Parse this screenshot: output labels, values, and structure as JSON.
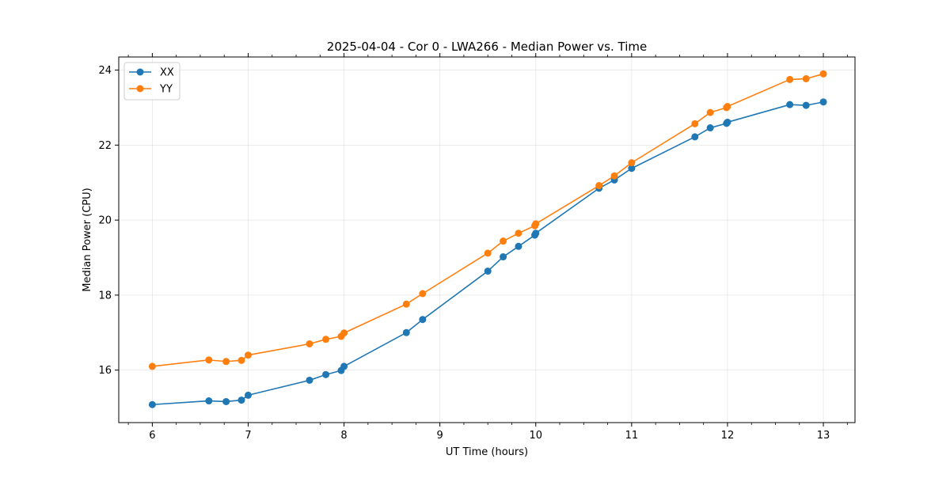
{
  "chart_data": {
    "type": "line",
    "title": "2025-04-04 - Cor 0 - LWA266 - Median Power vs. Time",
    "xlabel": "UT Time (hours)",
    "ylabel": "Median Power (CPU)",
    "xlim": [
      5.65,
      13.33
    ],
    "ylim": [
      14.6,
      24.35
    ],
    "xticks": [
      6,
      7,
      8,
      9,
      10,
      11,
      12,
      13
    ],
    "xtick_labels": [
      "6",
      "7",
      "8",
      "9",
      "10",
      "11",
      "12",
      "13"
    ],
    "xminor_step": 0.25,
    "yticks": [
      16,
      18,
      20,
      22,
      24
    ],
    "ytick_labels": [
      "16",
      "18",
      "20",
      "22",
      "24"
    ],
    "grid": true,
    "legend_position": "top-left",
    "series": [
      {
        "name": "XX",
        "color": "#1f77b4",
        "x": [
          6.0,
          6.59,
          6.77,
          6.93,
          7.0,
          7.64,
          7.81,
          7.97,
          8.0,
          8.65,
          8.82,
          9.5,
          9.66,
          9.82,
          9.99,
          10.0,
          10.66,
          10.82,
          11.0,
          11.66,
          11.82,
          11.99,
          12.0,
          12.65,
          12.82,
          13.0
        ],
        "y": [
          15.08,
          15.18,
          15.16,
          15.2,
          15.33,
          15.73,
          15.88,
          15.99,
          16.1,
          17.0,
          17.35,
          18.64,
          19.02,
          19.3,
          19.6,
          19.65,
          20.85,
          21.07,
          21.38,
          22.22,
          22.46,
          22.58,
          22.61,
          23.08,
          23.06,
          23.15
        ]
      },
      {
        "name": "YY",
        "color": "#ff7f0e",
        "x": [
          6.0,
          6.59,
          6.77,
          6.93,
          7.0,
          7.64,
          7.81,
          7.97,
          8.0,
          8.65,
          8.82,
          9.5,
          9.66,
          9.82,
          9.99,
          10.0,
          10.66,
          10.82,
          11.0,
          11.66,
          11.82,
          11.99,
          12.0,
          12.65,
          12.82,
          13.0
        ],
        "y": [
          16.1,
          16.27,
          16.23,
          16.26,
          16.4,
          16.7,
          16.82,
          16.9,
          16.99,
          17.76,
          18.04,
          19.12,
          19.44,
          19.65,
          19.85,
          19.9,
          20.92,
          21.18,
          21.53,
          22.57,
          22.87,
          23.0,
          23.03,
          23.75,
          23.77,
          23.9
        ]
      }
    ]
  }
}
